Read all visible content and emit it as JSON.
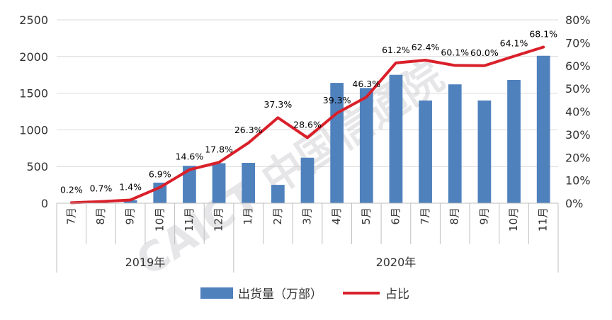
{
  "chart_data": {
    "type": "bar",
    "categories": [
      "7月",
      "8月",
      "9月",
      "10月",
      "11月",
      "12月",
      "1月",
      "2月",
      "3月",
      "4月",
      "5月",
      "6月",
      "7月",
      "8月",
      "9月",
      "10月",
      "11月"
    ],
    "year_groups": [
      {
        "label": "2019年",
        "count": 6
      },
      {
        "label": "2020年",
        "count": 11
      }
    ],
    "series": [
      {
        "name": "出货量（万部）",
        "type": "bar",
        "axis": "left",
        "color": "#4F81BD",
        "values": [
          4,
          15,
          40,
          280,
          510,
          545,
          550,
          250,
          620,
          1640,
          1570,
          1750,
          1400,
          1620,
          1400,
          1680,
          2010
        ]
      },
      {
        "name": "占比",
        "type": "line",
        "axis": "right",
        "color": "#D9202A",
        "values": [
          0.2,
          0.7,
          1.4,
          6.9,
          14.6,
          17.8,
          26.3,
          37.3,
          28.6,
          39.3,
          46.3,
          61.2,
          62.4,
          60.1,
          60.0,
          64.1,
          68.1
        ],
        "labels": [
          "0.2%",
          "0.7%",
          "1.4%",
          "6.9%",
          "14.6%",
          "17.8%",
          "26.3%",
          "37.3%",
          "28.6%",
          "39.3%",
          "46.3%",
          "61.2%",
          "62.4%",
          "60.1%",
          "60.0%",
          "64.1%",
          "68.1%"
        ]
      }
    ],
    "left_axis": {
      "ylim": [
        0,
        2500
      ],
      "ticks": [
        "0",
        "500",
        "1000",
        "1500",
        "2000",
        "2500"
      ]
    },
    "right_axis": {
      "ylim": [
        0,
        80
      ],
      "ticks": [
        "0%",
        "10%",
        "20%",
        "30%",
        "40%",
        "50%",
        "60%",
        "70%",
        "80%"
      ]
    },
    "grid": true,
    "legend_position": "bottom"
  },
  "watermark": "CAICT 中国信通院"
}
